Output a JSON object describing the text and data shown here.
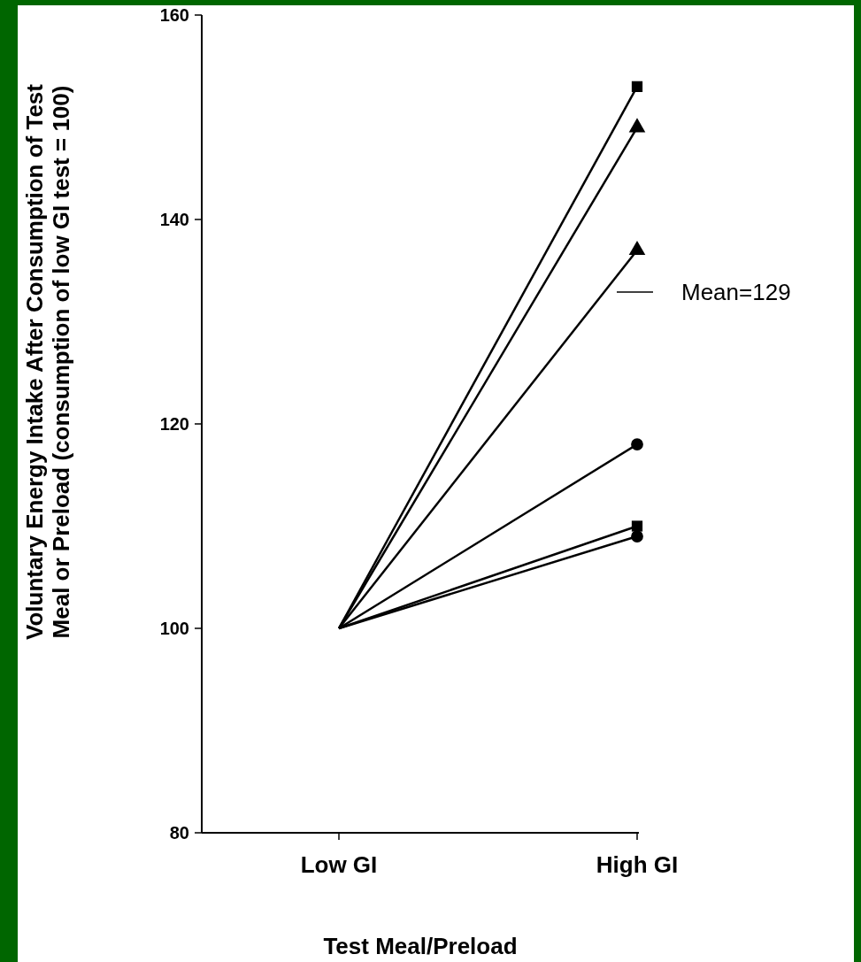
{
  "chart_data": {
    "type": "line",
    "xlabel": "Test Meal/Preload",
    "ylabel": "Voluntary Energy Intake After Consumption of Test\nMeal or Preload (consumption of low GI test = 100)",
    "categories": [
      "Low GI",
      "High GI"
    ],
    "series": [
      {
        "color": "#000000",
        "marker": "square",
        "values": [
          100,
          153
        ]
      },
      {
        "color": "#000000",
        "marker": "triangle",
        "values": [
          100,
          149
        ]
      },
      {
        "color": "#000000",
        "marker": "triangle",
        "values": [
          100,
          137
        ]
      },
      {
        "color": "#000000",
        "marker": "circle",
        "values": [
          100,
          118
        ]
      },
      {
        "color": "#000000",
        "marker": "square",
        "values": [
          100,
          110
        ]
      },
      {
        "color": "#000000",
        "marker": "circle",
        "values": [
          100,
          109
        ]
      }
    ],
    "annotations": [
      "Mean=129"
    ],
    "ylim": [
      80,
      160
    ],
    "yticks": [
      80,
      100,
      120,
      140,
      160
    ],
    "grid": false,
    "line_style": "solid"
  }
}
